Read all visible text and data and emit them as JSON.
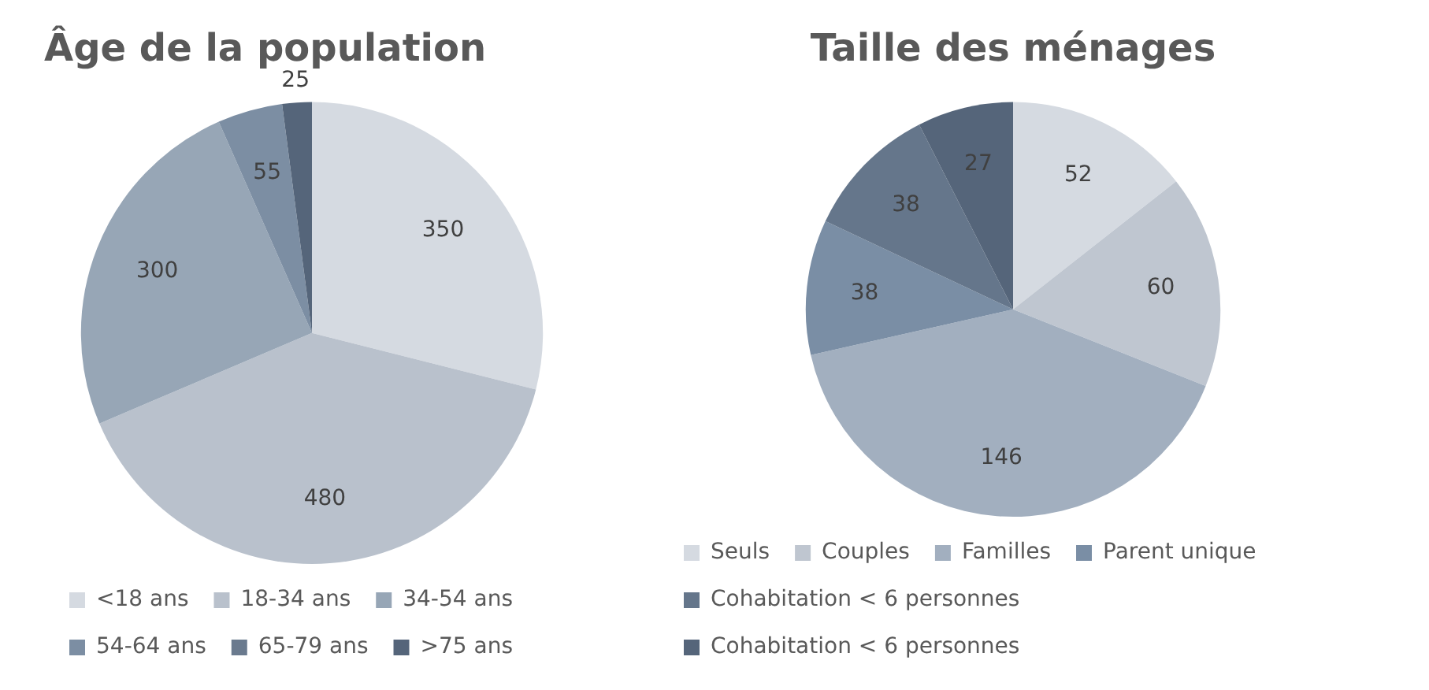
{
  "chart_data": [
    {
      "type": "pie",
      "title": "Âge de la population",
      "categories": [
        "<18 ans",
        "18-34 ans",
        "34-54 ans",
        "54-64 ans",
        "65-79 ans",
        ">75 ans"
      ],
      "values": [
        350,
        480,
        300,
        55,
        0,
        25
      ],
      "value_labels": [
        "350",
        "480",
        "300",
        "55",
        null,
        "25"
      ],
      "colors": [
        "#d5dae1",
        "#b9c1cc",
        "#97a6b6",
        "#7c8ea3",
        "#6a7a8e",
        "#55657a"
      ],
      "legend": "bottom"
    },
    {
      "type": "pie",
      "title": "Taille des ménages",
      "categories": [
        "Seuls",
        "Couples",
        "Familles",
        "Parent unique",
        "Cohabitation < 6 personnes",
        "Cohabitation < 6 personnes"
      ],
      "values": [
        52,
        60,
        146,
        38,
        38,
        27
      ],
      "data_labels": true,
      "colors": [
        "#d5dae1",
        "#bfc6d0",
        "#a2afbf",
        "#7a8ea5",
        "#65768b",
        "#55657a"
      ],
      "legend": "bottom"
    }
  ]
}
